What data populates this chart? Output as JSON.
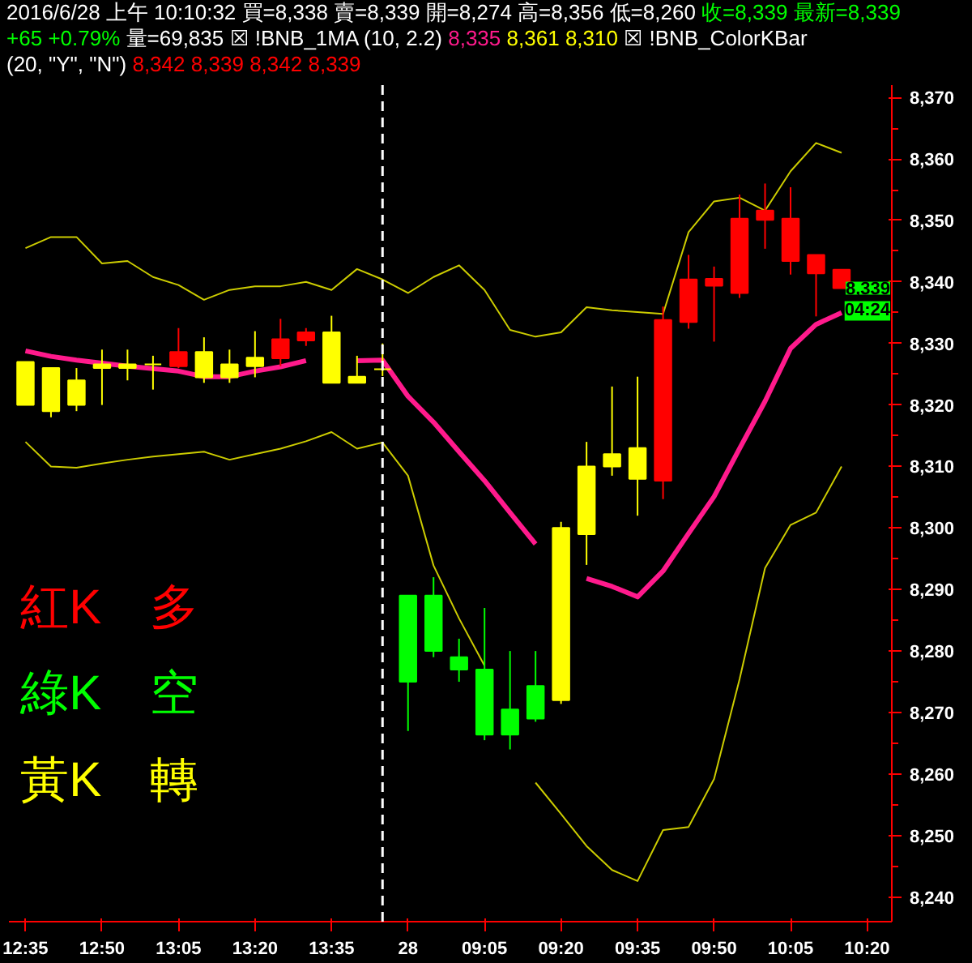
{
  "chart_data": {
    "type": "candlestick",
    "categories": [
      "12:35",
      null,
      null,
      "12:50",
      null,
      null,
      "13:05",
      null,
      null,
      "13:20",
      null,
      null,
      "13:35",
      null,
      null,
      "28",
      null,
      null,
      "09:05",
      null,
      null,
      "09:20",
      null,
      null,
      "09:35",
      null,
      null,
      "09:50",
      null,
      null,
      "10:05",
      null,
      null,
      "10:20"
    ],
    "ohlc": [
      [
        8320,
        8327,
        8320,
        8327
      ],
      [
        8319,
        8326,
        8318,
        8326
      ],
      [
        8320,
        8326,
        8319,
        8324
      ],
      [
        8326,
        8329,
        8320,
        8326.6
      ],
      [
        8326,
        8329,
        8324,
        8326.6
      ],
      [
        8326.6,
        8328,
        8322.5,
        8326.6
      ],
      [
        8326.3,
        8332.5,
        8326,
        8328.6
      ],
      [
        8324.5,
        8331,
        8323.6,
        8328.6
      ],
      [
        8324.5,
        8329,
        8323.6,
        8326.6
      ],
      [
        8326.3,
        8332,
        8324.5,
        8327.7
      ],
      [
        8327.6,
        8334,
        8326.3,
        8330.7
      ],
      [
        8330.5,
        8332.5,
        8329.6,
        8331.8
      ],
      [
        8323.6,
        8334.5,
        8323.6,
        8331.8
      ],
      [
        8323.6,
        8328,
        8323.6,
        8324.6
      ],
      [
        8325.8,
        8330,
        8324.7,
        8325.8
      ],
      [
        8289,
        8289,
        8267,
        8275
      ],
      [
        8289,
        8292,
        8279,
        8280
      ],
      [
        8279,
        8282,
        8275,
        8277
      ],
      [
        8277,
        8287,
        8265.5,
        8266.4
      ],
      [
        8270.5,
        8280,
        8264,
        8266.4
      ],
      [
        8274.3,
        8280,
        8268.5,
        8269
      ],
      [
        8272,
        8301,
        8271.4,
        8300
      ],
      [
        8299,
        8314,
        8294,
        8310
      ],
      [
        8310,
        8323,
        8308.5,
        8312
      ],
      [
        8308,
        8324.6,
        8302,
        8313
      ],
      [
        8307.7,
        8336,
        8304.7,
        8333.8
      ],
      [
        8333.5,
        8344.4,
        8332.4,
        8340.4
      ],
      [
        8339.4,
        8342.5,
        8330.3,
        8340.5
      ],
      [
        8338.2,
        8354.2,
        8337.4,
        8350.3
      ],
      [
        8350.1,
        8356,
        8345.4,
        8351.6
      ],
      [
        8343.4,
        8355.4,
        8341.2,
        8350.3
      ],
      [
        8341.4,
        8344.4,
        8334.4,
        8344.4
      ],
      [
        8339,
        8342,
        8339,
        8342
      ],
      null
    ],
    "colors": [
      "#ffff00",
      "#ffff00",
      "#ffff00",
      "#ffff00",
      "#ffff00",
      "#ffff00",
      "#ff0000",
      "#ffff00",
      "#ffff00",
      "#ffff00",
      "#ff0000",
      "#ff0000",
      "#ffff00",
      "#ffff00",
      "#ffff00",
      "#00ff00",
      "#00ff00",
      "#00ff00",
      "#00ff00",
      "#00ff00",
      "#00ff00",
      "#ffff00",
      "#ffff00",
      "#ffff00",
      "#ffff00",
      "#ff0000",
      "#ff0000",
      "#ff0000",
      "#ff0000",
      "#ff0000",
      "#ff0000",
      "#ff0000",
      "#ff0000",
      null
    ],
    "series": [
      {
        "type": "line",
        "color": "#ff1a8c",
        "values": [
          8328.8,
          8327.9,
          8327.3,
          8326.8,
          8326.3,
          8325.9,
          8325.5,
          8324.6,
          8324.6,
          8325.5,
          8326.2,
          8327.2,
          null,
          8327.2,
          8327.3,
          8321.4,
          8317.2,
          8312.4,
          8307.7,
          8302.5,
          8297.4,
          null,
          8291.8,
          8290.5,
          8288.8,
          8293,
          8299.1,
          8305.1,
          8312.9,
          8320.6,
          8329.2,
          8333.1,
          8335,
          null
        ]
      },
      {
        "type": "line",
        "color": "#cccc00",
        "values": [
          8345.5,
          8347.3,
          8347.3,
          8343,
          8343.4,
          8340.8,
          8339.5,
          8337.1,
          8338.7,
          8339.3,
          8339.3,
          8340,
          8338.7,
          8342.1,
          8340.4,
          8338.2,
          8340.8,
          8342.7,
          8338.7,
          8332.2,
          8331.1,
          8331.8,
          8335.9,
          8335.4,
          8335.1,
          8334.8,
          8348.1,
          8353.1,
          8353.7,
          8351.6,
          8358,
          8362.6,
          8361,
          null
        ]
      },
      {
        "type": "line",
        "color": "#cccc00",
        "values": [
          8314,
          8310,
          8309.8,
          8310.5,
          8311.1,
          8311.6,
          8312,
          8312.4,
          8311.1,
          8312,
          8312.9,
          8314.1,
          8315.6,
          8312.9,
          8313.9,
          8308.5,
          8293.9,
          8285.3,
          8277.6,
          null,
          8258.6,
          8253.5,
          8248.3,
          8244.4,
          8242.6,
          8250.9,
          8251.4,
          8259.2,
          8275.4,
          8293.5,
          8300.5,
          8302.5,
          8310,
          null
        ]
      }
    ],
    "ylim": [
      8236,
      8372
    ],
    "yticks": [
      {
        "value": 8240,
        "label": "8,240"
      },
      {
        "value": 8250,
        "label": "8,250"
      },
      {
        "value": 8260,
        "label": "8,260"
      },
      {
        "value": 8270,
        "label": "8,270"
      },
      {
        "value": 8280,
        "label": "8,280"
      },
      {
        "value": 8290,
        "label": "8,290"
      },
      {
        "value": 8300,
        "label": "8,300"
      },
      {
        "value": 8310,
        "label": "8,310"
      },
      {
        "value": 8320,
        "label": "8,320"
      },
      {
        "value": 8330,
        "label": "8,330"
      },
      {
        "value": 8340,
        "label": "8,340"
      },
      {
        "value": 8350,
        "label": "8,350"
      },
      {
        "value": 8360,
        "label": "8,360"
      },
      {
        "value": 8370,
        "label": "8,370"
      }
    ],
    "annotations": [
      "2016/6/28 上午 10:10:32",
      "買=8,338",
      "賣=8,339",
      "開=8,274",
      "高=8,356",
      "低=8,260",
      "收=8,339",
      "最新=8,339",
      "+65",
      "+0.79%",
      "量=69,835",
      "☒ !BNB_1MA (10, 2.2)",
      "8,335",
      "8,361",
      "8,310",
      "☒ !BNB_ColorKBar",
      "(20, \"Y\", \"N\")",
      "8,342",
      "8,339",
      "8,342",
      "8,339",
      "紅K　多",
      "綠K　空",
      "黃K　轉",
      "8,339",
      "04:24"
    ]
  }
}
